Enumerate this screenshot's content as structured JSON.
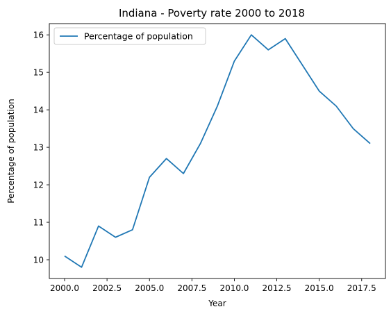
{
  "chart_data": {
    "type": "line",
    "title": "Indiana - Poverty rate 2000 to 2018",
    "xlabel": "Year",
    "ylabel": "Percentage of population",
    "xlim": [
      1999.1,
      2018.9
    ],
    "ylim": [
      9.5,
      16.3
    ],
    "x_ticks": [
      2000.0,
      2002.5,
      2005.0,
      2007.5,
      2010.0,
      2012.5,
      2015.0,
      2017.5
    ],
    "x_tick_labels": [
      "2000.0",
      "2002.5",
      "2005.0",
      "2007.5",
      "2010.0",
      "2012.5",
      "2015.0",
      "2017.5"
    ],
    "y_ticks": [
      10,
      11,
      12,
      13,
      14,
      15,
      16
    ],
    "y_tick_labels": [
      "10",
      "11",
      "12",
      "13",
      "14",
      "15",
      "16"
    ],
    "grid": false,
    "legend_position": "upper-left",
    "series": [
      {
        "name": "Percentage of population",
        "color": "#1f77b4",
        "x": [
          2000,
          2001,
          2002,
          2003,
          2004,
          2005,
          2006,
          2007,
          2008,
          2009,
          2010,
          2011,
          2012,
          2013,
          2014,
          2015,
          2016,
          2017,
          2018
        ],
        "values": [
          10.1,
          9.8,
          10.9,
          10.6,
          10.8,
          12.2,
          12.7,
          12.3,
          13.1,
          14.1,
          15.3,
          16.0,
          15.6,
          15.9,
          15.2,
          14.5,
          14.1,
          13.5,
          13.1
        ]
      }
    ]
  }
}
